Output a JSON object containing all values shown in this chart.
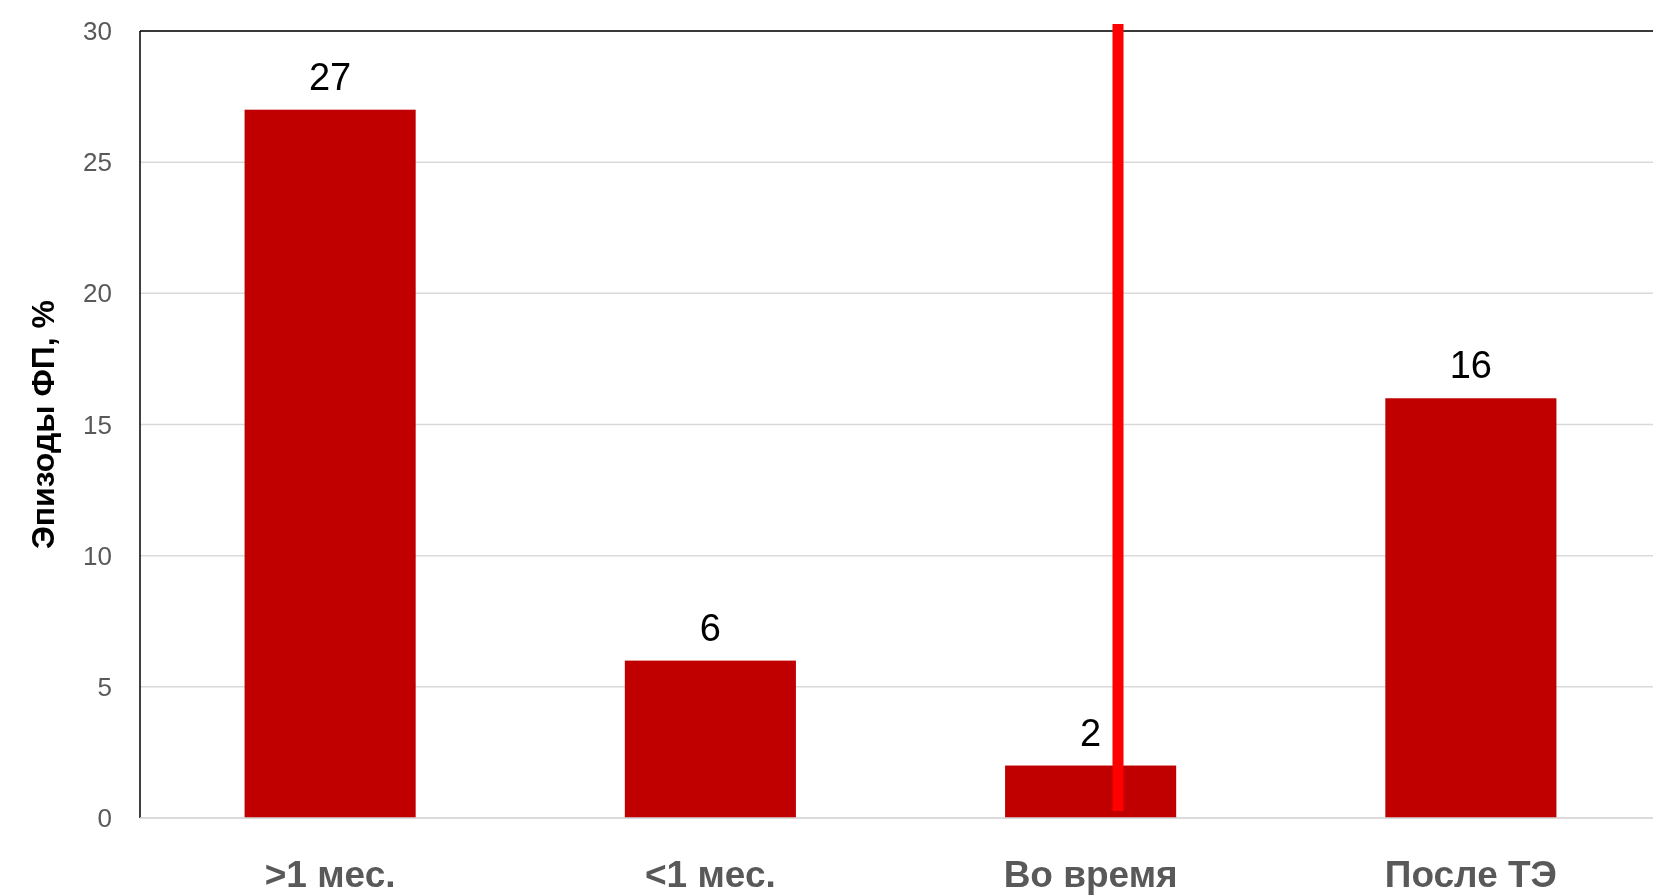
{
  "chart_data": {
    "type": "bar",
    "ylabel": "Эпизоды ФП, %",
    "categories": [
      ">1 мес.",
      "<1 мес.",
      "Во время",
      "После ТЭ"
    ],
    "values": [
      27,
      6,
      2,
      16
    ],
    "color": "#c00000",
    "ylim": [
      0,
      30
    ],
    "yticks": [
      0,
      5,
      10,
      15,
      20,
      25,
      30
    ],
    "grid": "y",
    "data_labels": true,
    "ref_lines": [
      {
        "axis": "x",
        "value": "Во время",
        "color": "#ff0000"
      }
    ]
  }
}
